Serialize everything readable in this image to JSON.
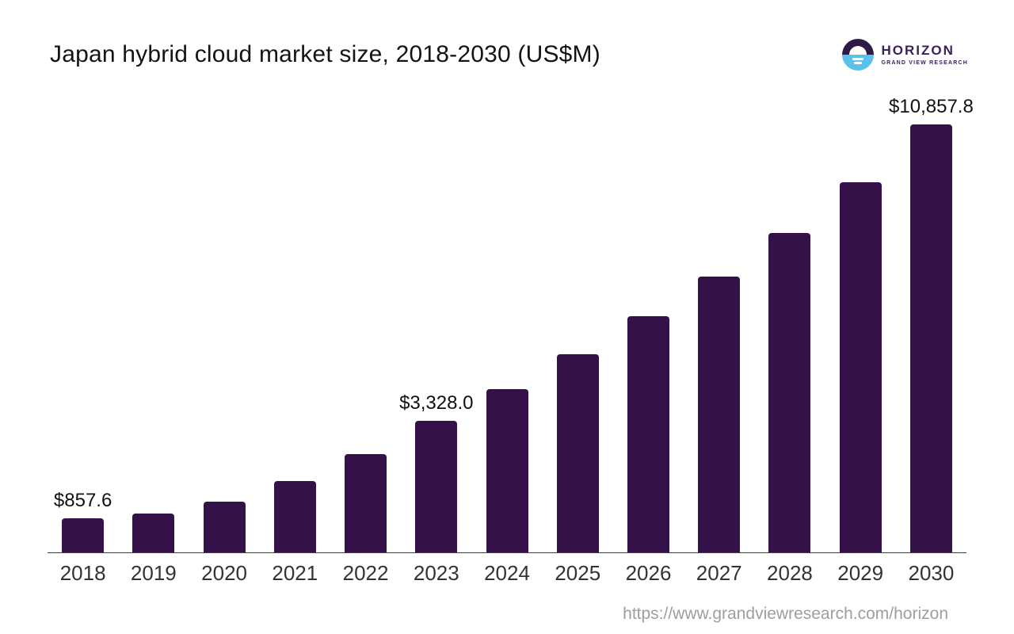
{
  "title": "Japan hybrid cloud market size, 2018-2030 (US$M)",
  "logo": {
    "name": "HORIZON",
    "subtitle": "GRAND VIEW RESEARCH"
  },
  "footer": {
    "url": "https://www.grandviewresearch.com/horizon"
  },
  "colors": {
    "bar": "#351149",
    "logo_dark": "#2E1A47",
    "logo_blue": "#59C2EB",
    "logo_text": "#3A2258",
    "axis": "#3F3F3F",
    "year_label": "#333333",
    "data_label": "#111111",
    "url": "#9E9E9E"
  },
  "chart_data": {
    "type": "bar",
    "title": "Japan hybrid cloud market size, 2018-2030 (US$M)",
    "xlabel": "",
    "ylabel": "",
    "categories": [
      "2018",
      "2019",
      "2020",
      "2021",
      "2022",
      "2023",
      "2024",
      "2025",
      "2026",
      "2027",
      "2028",
      "2029",
      "2030"
    ],
    "values": [
      857.6,
      985,
      1290,
      1810,
      2490,
      3328.0,
      4140,
      5030,
      5990,
      7000,
      8100,
      9390,
      10857.8
    ],
    "data_labels": {
      "2018": "$857.6",
      "2023": "$3,328.0",
      "2030": "$10,857.8"
    },
    "ylim": [
      0,
      10857.8
    ],
    "grid": false,
    "legend": false,
    "y_axis_visible": false,
    "bar_color": "#351149"
  }
}
